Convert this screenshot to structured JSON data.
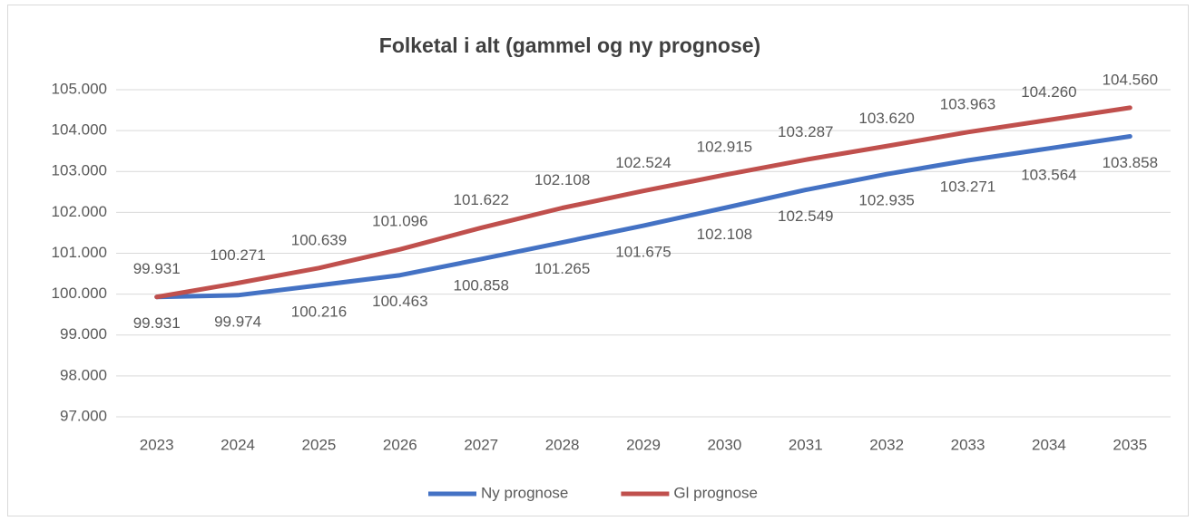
{
  "chart_data": {
    "type": "line",
    "title": "Folketal i alt (gammel og ny prognose)",
    "categories": [
      "2023",
      "2024",
      "2025",
      "2026",
      "2027",
      "2028",
      "2029",
      "2030",
      "2031",
      "2032",
      "2033",
      "2034",
      "2035"
    ],
    "series": [
      {
        "name": "Ny prognose",
        "color": "#4472c4",
        "values": [
          99931,
          99974,
          100216,
          100463,
          100858,
          101265,
          101675,
          102108,
          102549,
          102935,
          103271,
          103564,
          103858
        ],
        "value_labels": [
          "99.931",
          "99.974",
          "100.216",
          "100.463",
          "100.858",
          "101.265",
          "101.675",
          "102.108",
          "102.549",
          "102.935",
          "103.271",
          "103.564",
          "103.858"
        ]
      },
      {
        "name": "Gl prognose",
        "color": "#c0504d",
        "values": [
          99931,
          100271,
          100639,
          101096,
          101622,
          102108,
          102524,
          102915,
          103287,
          103620,
          103963,
          104260,
          104560
        ],
        "value_labels": [
          "99.931",
          "100.271",
          "100.639",
          "101.096",
          "101.622",
          "102.108",
          "102.524",
          "102.915",
          "103.287",
          "103.620",
          "103.963",
          "104.260",
          "104.560"
        ]
      }
    ],
    "ylim": [
      97000,
      105000
    ],
    "yticks": [
      {
        "value": 97000,
        "label": "97.000"
      },
      {
        "value": 98000,
        "label": "98.000"
      },
      {
        "value": 99000,
        "label": "99.000"
      },
      {
        "value": 100000,
        "label": "100.000"
      },
      {
        "value": 101000,
        "label": "101.000"
      },
      {
        "value": 102000,
        "label": "102.000"
      },
      {
        "value": 103000,
        "label": "103.000"
      },
      {
        "value": 104000,
        "label": "104.000"
      },
      {
        "value": 105000,
        "label": "105.000"
      }
    ],
    "grid": true,
    "legend": "bottom"
  }
}
